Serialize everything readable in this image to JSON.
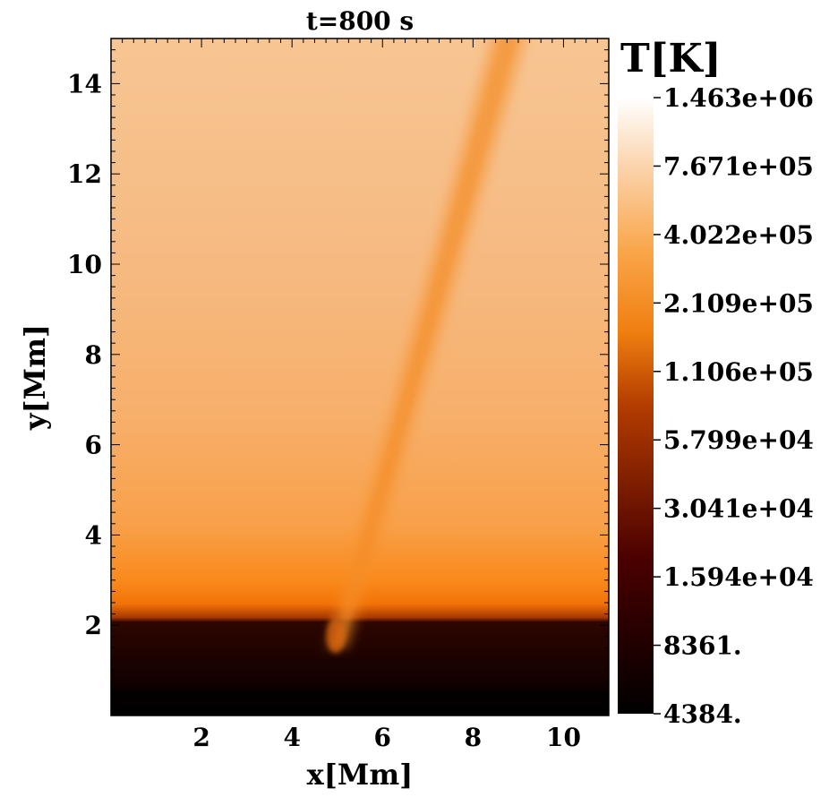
{
  "chart_data": {
    "type": "heatmap",
    "title": "t=800 s",
    "xlabel": "x[Mm]",
    "ylabel": "y[Mm]",
    "xlim": [
      0,
      11
    ],
    "ylim": [
      0,
      15
    ],
    "x_ticks": [
      2,
      4,
      6,
      8,
      10
    ],
    "y_ticks": [
      2,
      4,
      6,
      8,
      10,
      12,
      14
    ],
    "x_tick_labels": [
      "2",
      "4",
      "6",
      "8",
      "10"
    ],
    "y_tick_labels": [
      "2",
      "4",
      "6",
      "8",
      "10",
      "12",
      "14"
    ],
    "grid": false,
    "colorscale": "afmhot (log)",
    "colorbar": {
      "title": "T[K]",
      "scale": "log",
      "min": 4384,
      "max": 1463000,
      "ticks": [
        1463000,
        767100,
        402200,
        210900,
        110600,
        57990,
        30410,
        15940,
        8361,
        4384
      ],
      "tick_labels": [
        "1.463e+06",
        "7.671e+05",
        "4.022e+05",
        "2.109e+05",
        "1.106e+05",
        "5.799e+04",
        "3.041e+04",
        "1.594e+04",
        "8361.",
        "4384."
      ]
    },
    "features": {
      "chromosphere_top_y": 2.15,
      "cool_layer_top_y": 0.75,
      "jet_base": [
        5.0,
        1.5
      ],
      "jet_top": [
        8.9,
        15.0
      ]
    }
  }
}
